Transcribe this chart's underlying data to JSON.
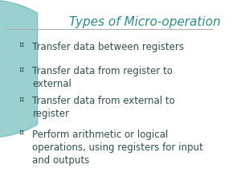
{
  "title": "Types of Micro-operation",
  "title_color": "#2E8B8B",
  "title_fontsize": 11,
  "bullet_points": [
    "Transfer data between registers",
    "Transfer data from register to\nexternal",
    "Transfer data from external to\nregister",
    "Perform arithmetic or logical\noperations, using registers for input\nand outputs"
  ],
  "bullet_color": "#2F4F4F",
  "bullet_fontsize": 8.5,
  "background_color": "#FFFFFF",
  "left_arc_color": "#4AABAB",
  "separator_color": "#AAAAAA",
  "bullet_symbol": "¤"
}
